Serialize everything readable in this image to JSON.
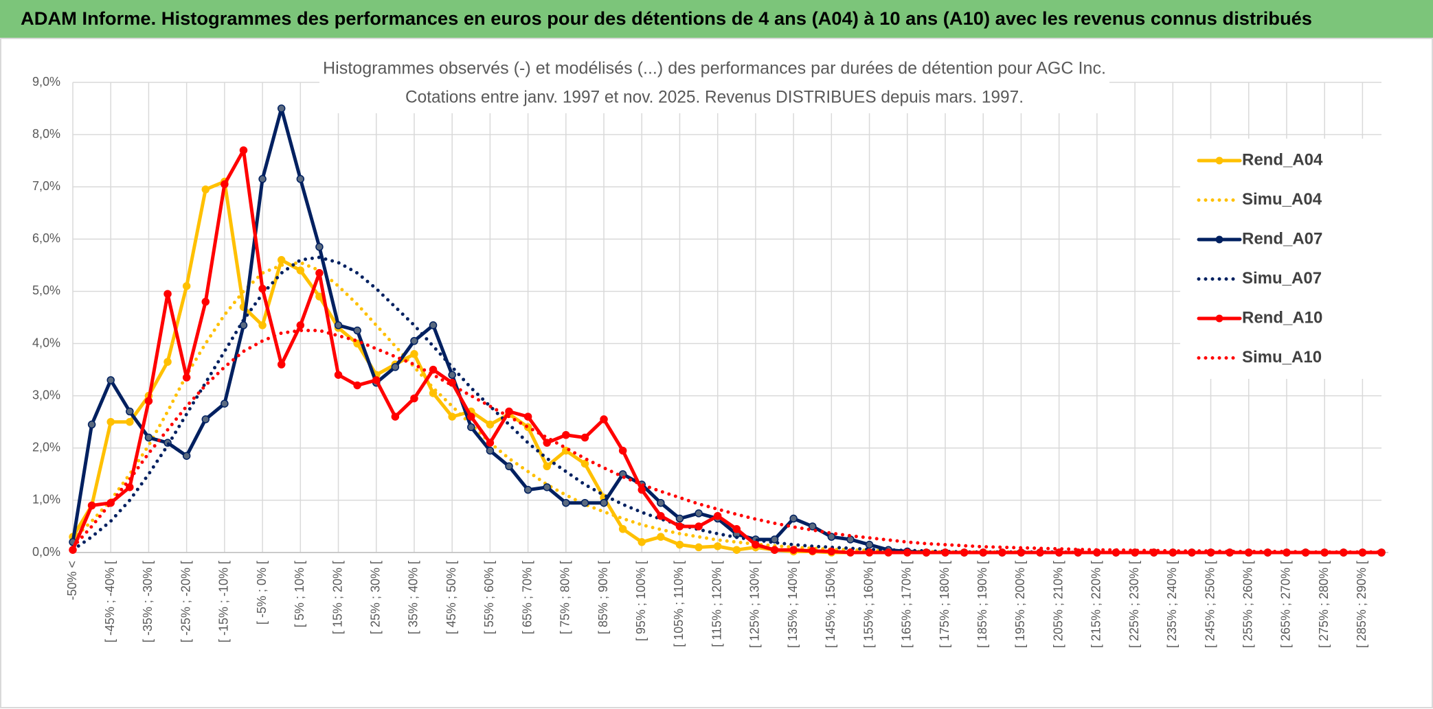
{
  "header": {
    "title": "ADAM Informe. Histogrammes des performances en euros pour des détentions de 4 ans (A04) à 10 ans (A10) avec les revenus connus distribués"
  },
  "chart_data": {
    "type": "line",
    "title": [
      "Histogrammes observés (-) et modélisés (...) des performances par durées de détention pour AGC Inc.",
      "Cotations entre janv. 1997 et nov. 2025. Revenus DISTRIBUES depuis mars. 1997."
    ],
    "categories": [
      "-50% <",
      null,
      "[ -45% ; -40% [",
      null,
      "[ -35% ; -30% [",
      null,
      "[ -25% ; -20% [",
      null,
      "[ -15% ; -10% [",
      null,
      "[ -5% ; 0% [",
      null,
      "[ 5% ; 10% [",
      null,
      "[ 15% ; 20% [",
      null,
      "[ 25% ; 30% [",
      null,
      "[ 35% ; 40% [",
      null,
      "[ 45% ; 50% [",
      null,
      "[ 55% ; 60% [",
      null,
      "[ 65% ; 70% [",
      null,
      "[ 75% ; 80% [",
      null,
      "[ 85% ; 90% [",
      null,
      "[ 95% ; 100% [",
      null,
      "[ 105% ; 110% [",
      null,
      "[ 115% ; 120% [",
      null,
      "[ 125% ; 130% [",
      null,
      "[ 135% ; 140% [",
      null,
      "[ 145% ; 150% [",
      null,
      "[ 155% ; 160% [",
      null,
      "[ 165% ; 170% [",
      null,
      "[ 175% ; 180% [",
      null,
      "[ 185% ; 190% [",
      null,
      "[ 195% ; 200% [",
      null,
      "[ 205% ; 210% [",
      null,
      "[ 215% ; 220% [",
      null,
      "[ 225% ; 230% [",
      null,
      "[ 235% ; 240% [",
      null,
      "[ 245% ; 250% [",
      null,
      "[ 255% ; 260% [",
      null,
      "[ 265% ; 270% [",
      null,
      "[ 275% ; 280% [",
      null,
      "[ 285% ; 290% [",
      null
    ],
    "series": [
      {
        "name": "Rend_A04",
        "color": "#ffc000",
        "style": "solid",
        "markers": true,
        "values": [
          0.3,
          0.9,
          2.5,
          2.5,
          3.0,
          3.65,
          5.1,
          6.95,
          7.1,
          4.7,
          4.35,
          5.6,
          5.4,
          4.9,
          4.3,
          4.0,
          3.4,
          3.6,
          3.8,
          3.05,
          2.6,
          2.7,
          2.45,
          2.65,
          2.4,
          1.65,
          1.95,
          1.7,
          1.05,
          0.45,
          0.2,
          0.3,
          0.15,
          0.1,
          0.12,
          0.05,
          0.1,
          0.05,
          0.02,
          0.02,
          0,
          0,
          0,
          0,
          0,
          0,
          0,
          0,
          0,
          0,
          0,
          0,
          0,
          0,
          0,
          0,
          0,
          0,
          0,
          0,
          0,
          0,
          0,
          0,
          0,
          0,
          0,
          0,
          0,
          0
        ]
      },
      {
        "name": "Simu_A04",
        "color": "#ffc000",
        "style": "dotted",
        "markers": false,
        "values": [
          0.25,
          0.6,
          1.0,
          1.5,
          2.05,
          2.7,
          3.4,
          4.0,
          4.55,
          5.0,
          5.35,
          5.5,
          5.55,
          5.4,
          5.1,
          4.75,
          4.35,
          3.95,
          3.55,
          3.15,
          2.8,
          2.45,
          2.1,
          1.8,
          1.55,
          1.3,
          1.1,
          0.92,
          0.78,
          0.65,
          0.53,
          0.44,
          0.36,
          0.3,
          0.24,
          0.2,
          0.16,
          0.13,
          0.1,
          0.08,
          0.06,
          0.05,
          0.04,
          0.03,
          0.02,
          0.02,
          0.01,
          0.01,
          0.01,
          0.01,
          0.01,
          0,
          0,
          0,
          0,
          0,
          0,
          0,
          0,
          0,
          0,
          0,
          0,
          0,
          0,
          0,
          0,
          0,
          0,
          0
        ]
      },
      {
        "name": "Rend_A07",
        "color": "#002060",
        "style": "solid",
        "markers": true,
        "values": [
          0.2,
          2.45,
          3.3,
          2.7,
          2.2,
          2.1,
          1.85,
          2.55,
          2.85,
          4.35,
          7.15,
          8.5,
          7.15,
          5.85,
          4.35,
          4.25,
          3.25,
          3.55,
          4.05,
          4.35,
          3.4,
          2.4,
          1.95,
          1.65,
          1.2,
          1.25,
          0.95,
          0.95,
          0.95,
          1.5,
          1.3,
          0.95,
          0.65,
          0.75,
          0.65,
          0.35,
          0.25,
          0.25,
          0.65,
          0.5,
          0.3,
          0.25,
          0.15,
          0.05,
          0.02,
          0,
          0,
          0,
          0,
          0,
          0,
          0,
          0,
          0,
          0,
          0,
          0,
          0,
          0,
          0,
          0,
          0,
          0,
          0,
          0,
          0,
          0,
          0,
          0,
          0
        ]
      },
      {
        "name": "Simu_A07",
        "color": "#002060",
        "style": "dotted",
        "markers": false,
        "values": [
          0.05,
          0.3,
          0.6,
          1.0,
          1.5,
          2.05,
          2.65,
          3.25,
          3.85,
          4.45,
          4.95,
          5.35,
          5.6,
          5.65,
          5.55,
          5.35,
          5.05,
          4.7,
          4.35,
          3.95,
          3.55,
          3.15,
          2.8,
          2.45,
          2.1,
          1.8,
          1.55,
          1.3,
          1.1,
          0.92,
          0.77,
          0.64,
          0.53,
          0.44,
          0.36,
          0.29,
          0.24,
          0.19,
          0.15,
          0.12,
          0.1,
          0.08,
          0.06,
          0.05,
          0.04,
          0.03,
          0.02,
          0.01,
          0.01,
          0.01,
          0.01,
          0.01,
          0.01,
          0,
          0,
          0,
          0,
          0,
          0,
          0,
          0,
          0,
          0,
          0,
          0,
          0,
          0,
          0,
          0,
          0
        ]
      },
      {
        "name": "Rend_A10",
        "color": "#ff0000",
        "style": "solid",
        "markers": true,
        "values": [
          0.05,
          0.9,
          0.95,
          1.25,
          2.9,
          4.95,
          3.35,
          4.8,
          7.05,
          7.7,
          5.05,
          3.6,
          4.35,
          5.35,
          3.4,
          3.2,
          3.3,
          2.6,
          2.95,
          3.5,
          3.25,
          2.6,
          2.1,
          2.7,
          2.6,
          2.1,
          2.25,
          2.2,
          2.55,
          1.95,
          1.2,
          0.7,
          0.5,
          0.5,
          0.7,
          0.45,
          0.15,
          0.05,
          0.05,
          0.03,
          0.02,
          0,
          0,
          0,
          0,
          0,
          0,
          0,
          0,
          0,
          0,
          0,
          0,
          0,
          0,
          0,
          0,
          0,
          0,
          0,
          0,
          0,
          0,
          0,
          0,
          0,
          0,
          0,
          0,
          0
        ]
      },
      {
        "name": "Simu_A10",
        "color": "#ff0000",
        "style": "dotted",
        "markers": false,
        "values": [
          0.1,
          0.5,
          0.95,
          1.4,
          1.9,
          2.35,
          2.8,
          3.2,
          3.55,
          3.85,
          4.05,
          4.2,
          4.25,
          4.25,
          4.15,
          4.05,
          3.9,
          3.75,
          3.6,
          3.4,
          3.2,
          3.0,
          2.8,
          2.6,
          2.4,
          2.2,
          2.0,
          1.8,
          1.62,
          1.45,
          1.3,
          1.17,
          1.05,
          0.93,
          0.83,
          0.73,
          0.64,
          0.56,
          0.49,
          0.43,
          0.37,
          0.32,
          0.28,
          0.24,
          0.2,
          0.17,
          0.15,
          0.13,
          0.11,
          0.1,
          0.09,
          0.08,
          0.07,
          0.06,
          0.05,
          0.05,
          0.04,
          0.04,
          0.03,
          0.03,
          0.03,
          0.02,
          0.02,
          0.02,
          0.02,
          0.01,
          0.01,
          0.01,
          0.01,
          0.01
        ]
      }
    ],
    "ylim": [
      0,
      9
    ],
    "yticks": [
      {
        "value": 0,
        "label": "0,0%"
      },
      {
        "value": 1,
        "label": "1,0%"
      },
      {
        "value": 2,
        "label": "2,0%"
      },
      {
        "value": 3,
        "label": "3,0%"
      },
      {
        "value": 4,
        "label": "4,0%"
      },
      {
        "value": 5,
        "label": "5,0%"
      },
      {
        "value": 6,
        "label": "6,0%"
      },
      {
        "value": 7,
        "label": "7,0%"
      },
      {
        "value": 8,
        "label": "8,0%"
      },
      {
        "value": 9,
        "label": "9,0%"
      }
    ],
    "grid": true,
    "legend": "right"
  }
}
